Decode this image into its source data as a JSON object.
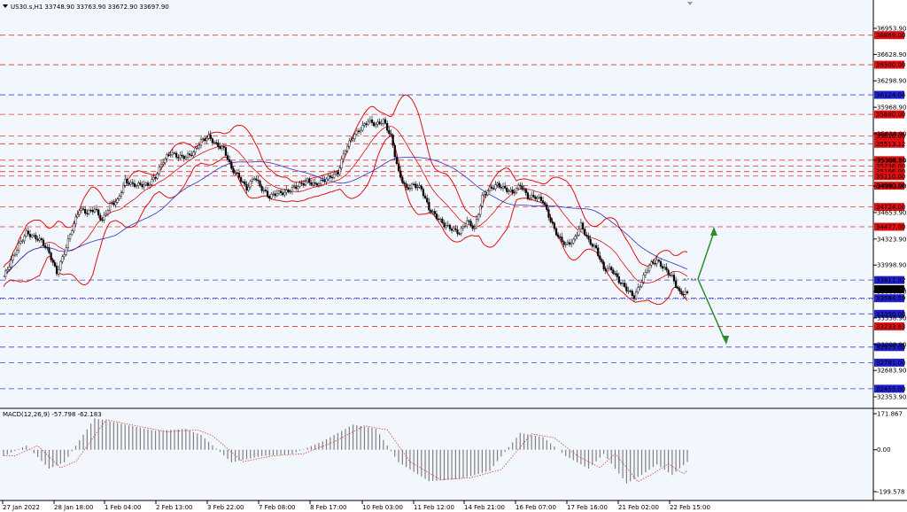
{
  "header": {
    "title": "US30.s,H1  33748.90 33763.90 33672.90 33697.90",
    "indicator": "MACD(12,26,9) -57.798 -62.183"
  },
  "colors": {
    "background": "#ffffff",
    "plot_bg": "#f2f7fd",
    "red_line": "#e01010",
    "blue_line": "#2020d0",
    "ma_blue": "#3030c0",
    "arrow_green": "#2e8b2e",
    "candle": "#000000",
    "hist": "#808080",
    "signal": "#d04040"
  },
  "chart_data": [
    {
      "type": "candlestick",
      "symbol": "US30.s",
      "timeframe": "H1",
      "last": {
        "open": 33748.9,
        "high": 33763.9,
        "low": 33672.9,
        "close": 33697.9
      },
      "ylim": [
        32200,
        37150
      ],
      "y_ticks": [
        36953.9,
        36628.9,
        36298.9,
        35968.9,
        35638.9,
        35308.9,
        34983.9,
        34653.9,
        34323.9,
        33998.9,
        33668.9,
        33338.9,
        33008.9,
        32683.9,
        32353.9
      ],
      "x_ticks": [
        "27 Jan 2022",
        "28 Jan 18:00",
        "1 Feb 04:00",
        "2 Feb 13:00",
        "3 Feb 22:00",
        "7 Feb 08:00",
        "8 Feb 17:00",
        "10 Feb 03:00",
        "11 Feb 12:00",
        "14 Feb 21:00",
        "16 Feb 07:00",
        "17 Feb 16:00",
        "21 Feb 02:00",
        "22 Feb 15:00"
      ],
      "price_levels": [
        {
          "value": 36869.0,
          "label": "36869.00",
          "color": "red"
        },
        {
          "value": 36500.0,
          "label": "36500.00",
          "color": "red"
        },
        {
          "value": 36124.04,
          "label": "36124.04",
          "color": "blue"
        },
        {
          "value": 35880.0,
          "label": "35880.00",
          "color": "red"
        },
        {
          "value": 35610.0,
          "label": "35610.00",
          "color": "red"
        },
        {
          "value": 35513.12,
          "label": "35513.12",
          "color": "red"
        },
        {
          "value": 35308.23,
          "label": "35308.23",
          "color": "red"
        },
        {
          "value": 35236.0,
          "label": "35236.00",
          "color": "red"
        },
        {
          "value": 35166.0,
          "label": "35166.00",
          "color": "red"
        },
        {
          "value": 35110.0,
          "label": "35110.00",
          "color": "red"
        },
        {
          "value": 34990.0,
          "label": "34990.00",
          "color": "red"
        },
        {
          "value": 34724.0,
          "label": "34724.00",
          "color": "red"
        },
        {
          "value": 34477.0,
          "label": "34477.00",
          "color": "red"
        },
        {
          "value": 33811.92,
          "label": "33811.92",
          "color": "blue"
        },
        {
          "value": 33584.59,
          "label": "33584.59",
          "color": "blue"
        },
        {
          "value": 33390.0,
          "label": "33390.00",
          "color": "blue"
        },
        {
          "value": 33233.63,
          "label": "33233.63",
          "color": "red"
        },
        {
          "value": 32975.0,
          "label": "32975.00",
          "color": "blue"
        },
        {
          "value": 32781.0,
          "label": "32781.00",
          "color": "blue"
        },
        {
          "value": 32455.0,
          "label": "32455.00",
          "color": "blue"
        }
      ],
      "current_price": {
        "value": 33697.9,
        "label": "33697.90"
      },
      "close_series": [
        33850,
        34050,
        34250,
        34400,
        34350,
        34300,
        34150,
        33900,
        34150,
        34450,
        34700,
        34650,
        34700,
        34550,
        34750,
        34800,
        35050,
        35000,
        35000,
        35000,
        35100,
        35300,
        35400,
        35350,
        35350,
        35400,
        35550,
        35600,
        35500,
        35450,
        35200,
        35100,
        34950,
        35100,
        34950,
        34850,
        34900,
        34900,
        34950,
        35000,
        35050,
        35000,
        35050,
        35100,
        35150,
        35450,
        35600,
        35700,
        35800,
        35750,
        35800,
        35600,
        35150,
        34950,
        35000,
        34950,
        34700,
        34600,
        34500,
        34450,
        34400,
        34550,
        34450,
        34850,
        34950,
        35000,
        34950,
        34900,
        35000,
        34850,
        34850,
        34800,
        34550,
        34350,
        34250,
        34300,
        34500,
        34300,
        34200,
        33950,
        33950,
        33800,
        33700,
        33600,
        33800,
        34000,
        34050,
        33950,
        33850,
        33650,
        33650
      ],
      "pivots": [
        {
          "i": 0,
          "v": 33850
        },
        {
          "i": 3,
          "v": 34400
        },
        {
          "i": 7,
          "v": 33850
        },
        {
          "i": 10,
          "v": 34700
        },
        {
          "i": 16,
          "v": 35050
        },
        {
          "i": 21,
          "v": 35350
        },
        {
          "i": 27,
          "v": 35600
        },
        {
          "i": 31,
          "v": 35100
        },
        {
          "i": 35,
          "v": 34850
        },
        {
          "i": 40,
          "v": 35050
        },
        {
          "i": 46,
          "v": 35650
        },
        {
          "i": 49,
          "v": 35800
        },
        {
          "i": 53,
          "v": 34950
        },
        {
          "i": 60,
          "v": 34400
        },
        {
          "i": 63,
          "v": 34850
        },
        {
          "i": 68,
          "v": 34950
        },
        {
          "i": 71,
          "v": 34800
        },
        {
          "i": 75,
          "v": 34250
        },
        {
          "i": 77,
          "v": 34450
        },
        {
          "i": 80,
          "v": 33950
        },
        {
          "i": 83,
          "v": 33600
        },
        {
          "i": 86,
          "v": 34050
        },
        {
          "i": 88,
          "v": 33650
        },
        {
          "i": 90,
          "v": 33698
        }
      ],
      "macd": {
        "name": "MACD(12,26,9)",
        "main": -57.798,
        "signal": -62.183,
        "y_ticks": [
          171.867,
          0.0,
          -199.578
        ],
        "ylim": [
          -210,
          185
        ],
        "hist_pivots": [
          {
            "i": 0,
            "v": -30
          },
          {
            "i": 3,
            "v": 20
          },
          {
            "i": 6,
            "v": -90
          },
          {
            "i": 8,
            "v": -60
          },
          {
            "i": 12,
            "v": 150
          },
          {
            "i": 16,
            "v": 120
          },
          {
            "i": 20,
            "v": 90
          },
          {
            "i": 24,
            "v": 100
          },
          {
            "i": 26,
            "v": 70
          },
          {
            "i": 30,
            "v": -60
          },
          {
            "i": 34,
            "v": -30
          },
          {
            "i": 38,
            "v": -20
          },
          {
            "i": 40,
            "v": 10
          },
          {
            "i": 42,
            "v": 40
          },
          {
            "i": 46,
            "v": 120
          },
          {
            "i": 49,
            "v": 100
          },
          {
            "i": 52,
            "v": -60
          },
          {
            "i": 56,
            "v": -150
          },
          {
            "i": 60,
            "v": -140
          },
          {
            "i": 64,
            "v": -100
          },
          {
            "i": 68,
            "v": 80
          },
          {
            "i": 71,
            "v": 60
          },
          {
            "i": 74,
            "v": -30
          },
          {
            "i": 77,
            "v": -90
          },
          {
            "i": 79,
            "v": -20
          },
          {
            "i": 82,
            "v": -160
          },
          {
            "i": 84,
            "v": -120
          },
          {
            "i": 86,
            "v": -70
          },
          {
            "i": 88,
            "v": -120
          },
          {
            "i": 90,
            "v": -58
          }
        ]
      }
    }
  ]
}
